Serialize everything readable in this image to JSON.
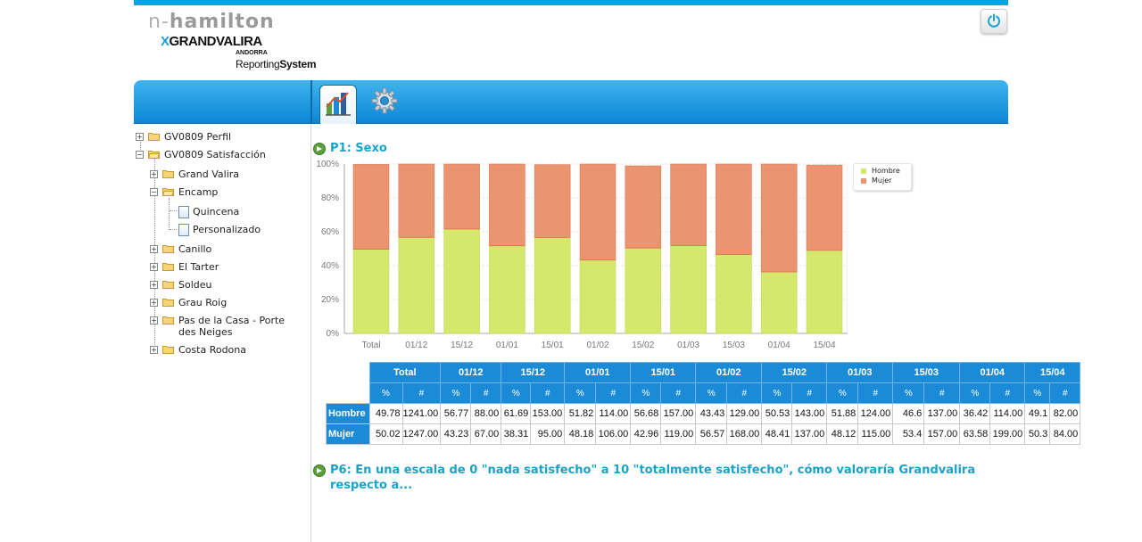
{
  "app": {
    "logo_prefix": "n-",
    "logo_main": "hamilton",
    "brand_x": "X",
    "brand_name": "GRANDVALIRA",
    "brand_sub": "ANDORRA",
    "product_a": "Reporting",
    "product_b": "System"
  },
  "icons": {
    "power": "power-icon",
    "reports": "bar-chart-icon",
    "settings": "gear-icon",
    "section": "green-arrow-icon",
    "folder": "folder-icon",
    "document": "document-icon"
  },
  "sidebar": {
    "items": [
      {
        "label": "GV0809 Perfil",
        "toggle": "+"
      },
      {
        "label": "GV0809 Satisfacción",
        "toggle": "−"
      },
      {
        "label": "Grand Valira",
        "toggle": "+"
      },
      {
        "label": "Encamp",
        "toggle": "−"
      },
      {
        "label": "Quincena"
      },
      {
        "label": "Personalizado"
      },
      {
        "label": "Canillo",
        "toggle": "+"
      },
      {
        "label": "El Tarter",
        "toggle": "+"
      },
      {
        "label": "Soldeu",
        "toggle": "+"
      },
      {
        "label": "Grau Roig",
        "toggle": "+"
      },
      {
        "label": "Pas de la Casa - Porte",
        "label2": "des Neiges",
        "toggle": "+"
      },
      {
        "label": "Costa Rodona",
        "toggle": "+"
      }
    ]
  },
  "main": {
    "section1_title": "P1: Sexo",
    "section2_title_line1": "P6: En una escala de 0 \"nada satisfecho\" a 10 \"totalmente satisfecho\", cómo valoraría Grandvalira",
    "section2_title_line2": "respecto a..."
  },
  "chart_data": {
    "type": "bar",
    "stacked": true,
    "categories": [
      "Total",
      "01/12",
      "15/12",
      "01/01",
      "15/01",
      "01/02",
      "15/02",
      "01/03",
      "15/03",
      "01/04",
      "15/04"
    ],
    "series": [
      {
        "name": "Hombre",
        "color": "#d4e96b",
        "values": [
          49.78,
          56.77,
          61.69,
          51.82,
          56.68,
          43.43,
          50.53,
          51.88,
          46.6,
          36.42,
          49.1
        ]
      },
      {
        "name": "Mujer",
        "color": "#ea9470",
        "values": [
          50.02,
          43.23,
          38.31,
          48.18,
          42.96,
          56.57,
          48.41,
          48.12,
          53.4,
          63.58,
          50.3
        ]
      }
    ],
    "y_ticks": [
      "0%",
      "20%",
      "40%",
      "60%",
      "80%",
      "100%"
    ],
    "ylim": [
      0,
      100
    ],
    "grid": true,
    "legend_position": "right-top"
  },
  "table": {
    "columns": [
      "Total",
      "01/12",
      "15/12",
      "01/01",
      "15/01",
      "01/02",
      "15/02",
      "01/03",
      "15/03",
      "01/04",
      "15/04"
    ],
    "sub_pct": "%",
    "sub_num": "#",
    "rows": [
      {
        "label": "Hombre",
        "cells": [
          "49.78",
          "1241.00",
          "56.77",
          "88.00",
          "61.69",
          "153.00",
          "51.82",
          "114.00",
          "56.68",
          "157.00",
          "43.43",
          "129.00",
          "50.53",
          "143.00",
          "51.88",
          "124.00",
          "46.6",
          "137.00",
          "36.42",
          "114.00",
          "49.1",
          "82.00"
        ]
      },
      {
        "label": "Mujer",
        "cells": [
          "50.02",
          "1247.00",
          "43.23",
          "67.00",
          "38.31",
          "95.00",
          "48.18",
          "106.00",
          "42.96",
          "119.00",
          "56.57",
          "168.00",
          "48.41",
          "137.00",
          "48.12",
          "115.00",
          "53.4",
          "157.00",
          "63.58",
          "199.00",
          "50.3",
          "84.00"
        ]
      }
    ]
  }
}
